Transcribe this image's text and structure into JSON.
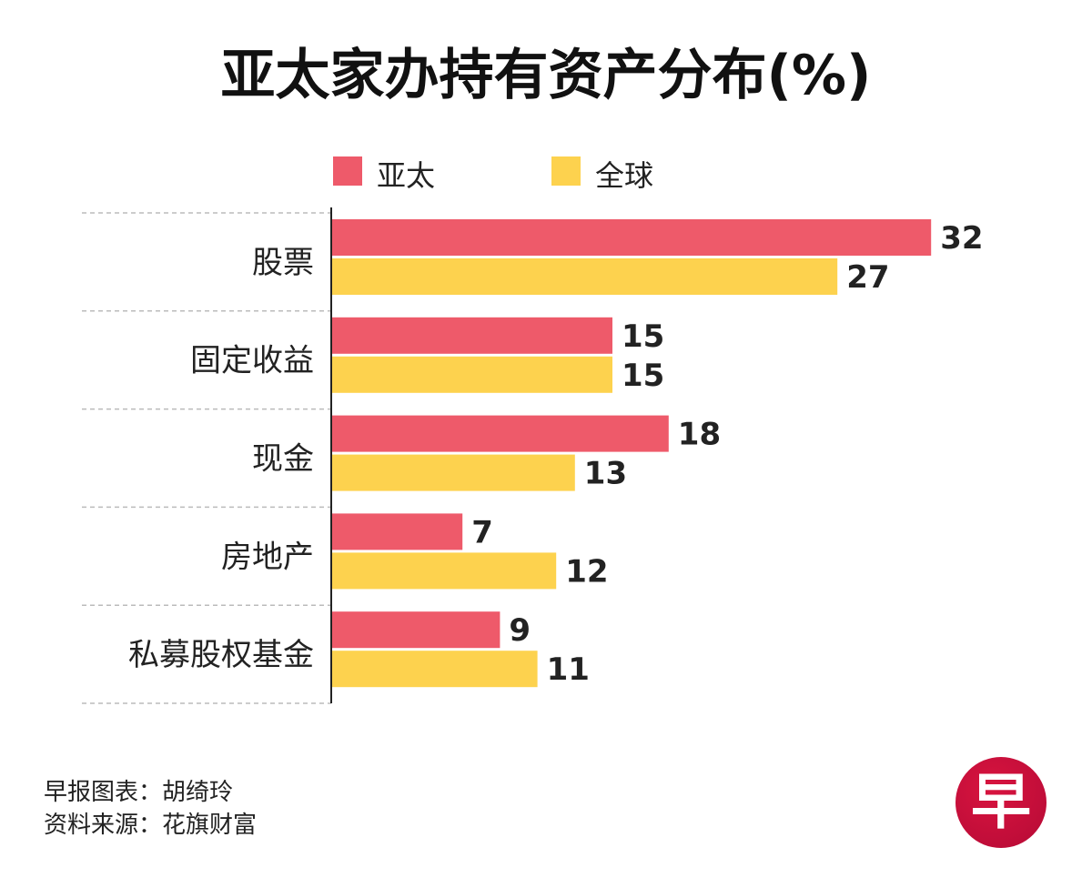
{
  "chart_data": {
    "type": "bar",
    "orientation": "horizontal",
    "title": "亚太家办持有资产分布(%)",
    "categories": [
      "股票",
      "固定收益",
      "现金",
      "房地产",
      "私募股权基金"
    ],
    "series": [
      {
        "name": "亚太",
        "color": "#ee5a6a",
        "values": [
          32,
          15,
          18,
          7,
          9
        ]
      },
      {
        "name": "全球",
        "color": "#fdd24e",
        "values": [
          27,
          15,
          13,
          12,
          11
        ]
      }
    ],
    "xlim": [
      0,
      32
    ],
    "legend": "top",
    "grid": false
  },
  "footer": {
    "credit": "早报图表：胡绮玲",
    "source": "资料来源：花旗财富"
  },
  "logo": {
    "text": "早",
    "color": "#c8103a"
  }
}
